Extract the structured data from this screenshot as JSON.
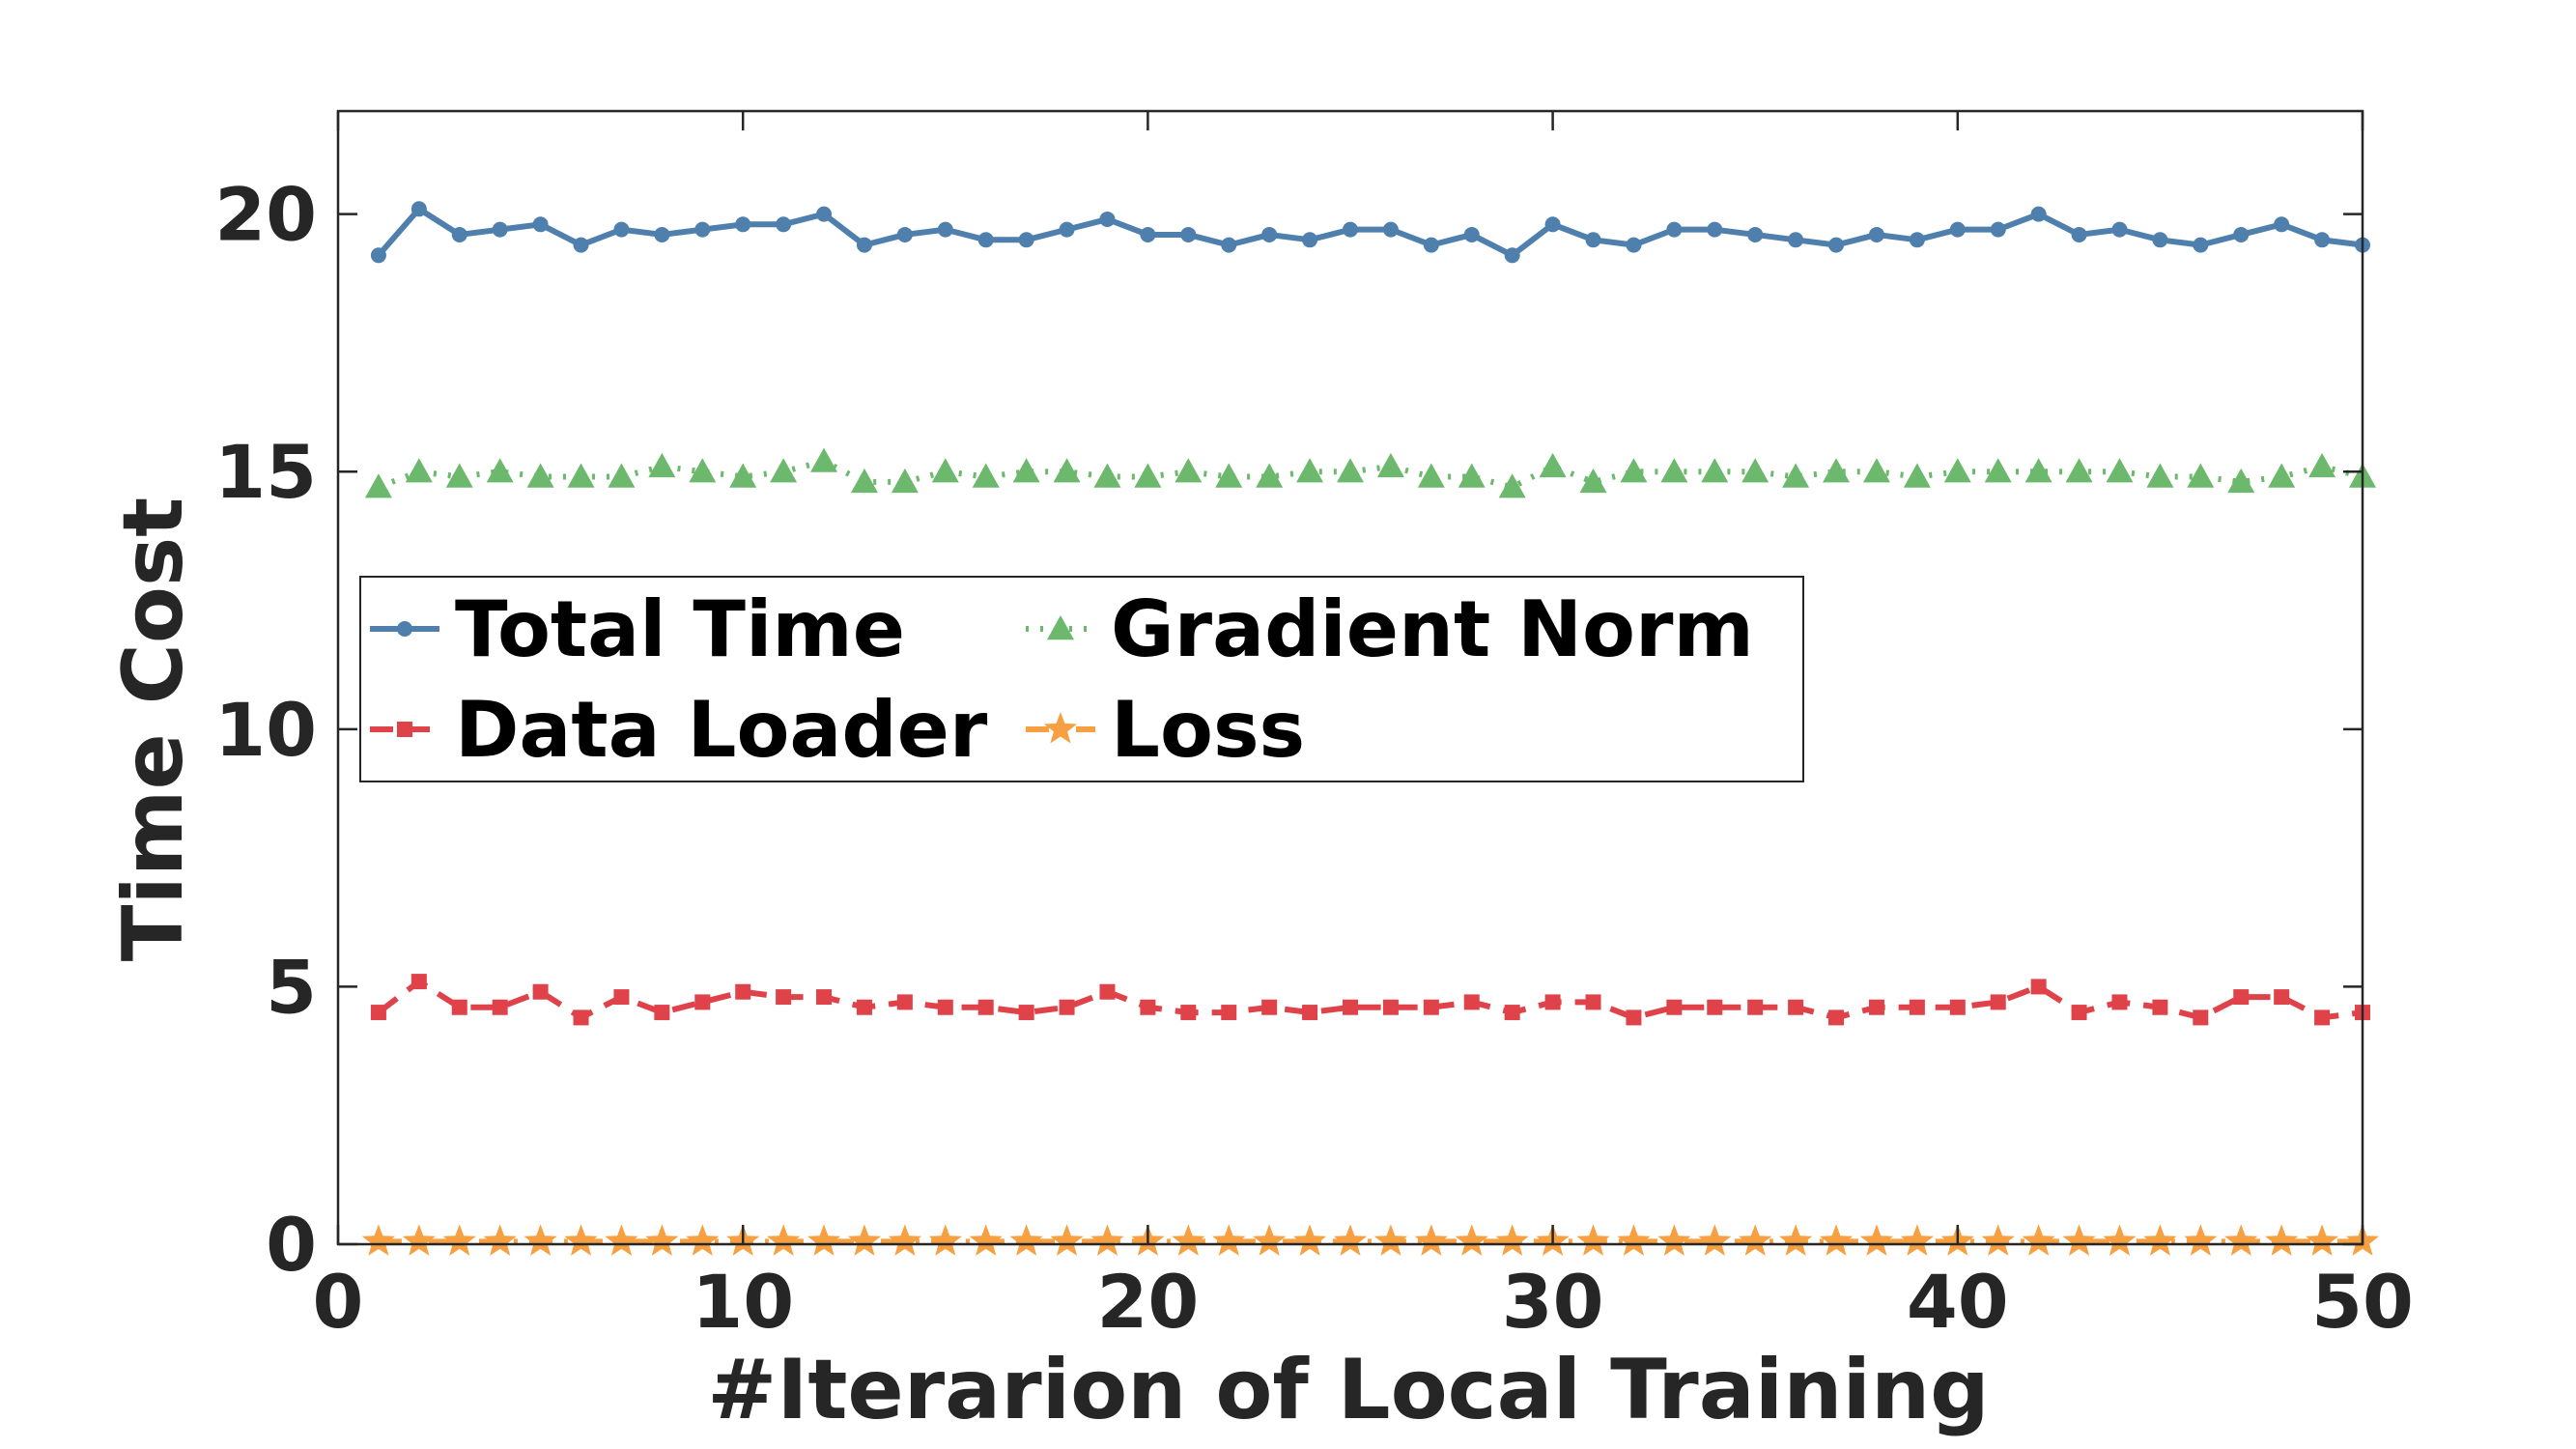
{
  "chart_data": {
    "type": "line",
    "xlabel": "#Iterarion of Local Training",
    "ylabel": "Time Cost",
    "xlim": [
      0,
      50
    ],
    "ylim": [
      0,
      22
    ],
    "xticks": [
      0,
      10,
      20,
      30,
      40,
      50
    ],
    "yticks": [
      0,
      5,
      10,
      15,
      20
    ],
    "grid": false,
    "legend_position": "center-left",
    "x": [
      1,
      2,
      3,
      4,
      5,
      6,
      7,
      8,
      9,
      10,
      11,
      12,
      13,
      14,
      15,
      16,
      17,
      18,
      19,
      20,
      21,
      22,
      23,
      24,
      25,
      26,
      27,
      28,
      29,
      30,
      31,
      32,
      33,
      34,
      35,
      36,
      37,
      38,
      39,
      40,
      41,
      42,
      43,
      44,
      45,
      46,
      47,
      48,
      49,
      50
    ],
    "series": [
      {
        "name": "Total Time",
        "color": "#4e7fad",
        "line_style": "solid",
        "marker": "dot",
        "values": [
          19.2,
          20.1,
          19.6,
          19.7,
          19.8,
          19.4,
          19.7,
          19.6,
          19.7,
          19.8,
          19.8,
          20.0,
          19.4,
          19.6,
          19.7,
          19.5,
          19.5,
          19.7,
          19.9,
          19.6,
          19.6,
          19.4,
          19.6,
          19.5,
          19.7,
          19.7,
          19.4,
          19.6,
          19.2,
          19.8,
          19.5,
          19.4,
          19.7,
          19.7,
          19.6,
          19.5,
          19.4,
          19.6,
          19.5,
          19.7,
          19.7,
          20.0,
          19.6,
          19.7,
          19.5,
          19.4,
          19.6,
          19.8,
          19.5,
          19.4
        ]
      },
      {
        "name": "Gradient Norm",
        "color": "#6cb86c",
        "line_style": "dotted",
        "marker": "triangle",
        "values": [
          14.7,
          15.0,
          14.9,
          15.0,
          14.9,
          14.9,
          14.9,
          15.1,
          15.0,
          14.9,
          15.0,
          15.2,
          14.8,
          14.8,
          15.0,
          14.9,
          15.0,
          15.0,
          14.9,
          14.9,
          15.0,
          14.9,
          14.9,
          15.0,
          15.0,
          15.1,
          14.9,
          14.9,
          14.7,
          15.1,
          14.8,
          15.0,
          15.0,
          15.0,
          15.0,
          14.9,
          15.0,
          15.0,
          14.9,
          15.0,
          15.0,
          15.0,
          15.0,
          15.0,
          14.9,
          14.9,
          14.8,
          14.9,
          15.1,
          14.9
        ]
      },
      {
        "name": "Data Loader",
        "color": "#e0424a",
        "line_style": "dashed",
        "marker": "square",
        "values": [
          4.5,
          5.1,
          4.6,
          4.6,
          4.9,
          4.4,
          4.8,
          4.5,
          4.7,
          4.9,
          4.8,
          4.8,
          4.6,
          4.7,
          4.6,
          4.6,
          4.5,
          4.6,
          4.9,
          4.6,
          4.5,
          4.5,
          4.6,
          4.5,
          4.6,
          4.6,
          4.6,
          4.7,
          4.5,
          4.7,
          4.7,
          4.4,
          4.6,
          4.6,
          4.6,
          4.6,
          4.4,
          4.6,
          4.6,
          4.6,
          4.7,
          5.0,
          4.5,
          4.7,
          4.6,
          4.4,
          4.8,
          4.8,
          4.4,
          4.5
        ]
      },
      {
        "name": "Loss",
        "color": "#f7a042",
        "line_style": "dashdot",
        "marker": "star",
        "values": [
          0.05,
          0.05,
          0.05,
          0.05,
          0.05,
          0.05,
          0.05,
          0.05,
          0.05,
          0.05,
          0.05,
          0.05,
          0.05,
          0.05,
          0.05,
          0.05,
          0.05,
          0.05,
          0.05,
          0.05,
          0.05,
          0.05,
          0.05,
          0.05,
          0.05,
          0.05,
          0.05,
          0.05,
          0.05,
          0.05,
          0.05,
          0.05,
          0.05,
          0.05,
          0.05,
          0.05,
          0.05,
          0.05,
          0.05,
          0.05,
          0.05,
          0.05,
          0.05,
          0.05,
          0.05,
          0.05,
          0.05,
          0.05,
          0.05,
          0.05
        ]
      }
    ],
    "legend_order": [
      "Total Time",
      "Gradient Norm",
      "Data Loader",
      "Loss"
    ]
  }
}
